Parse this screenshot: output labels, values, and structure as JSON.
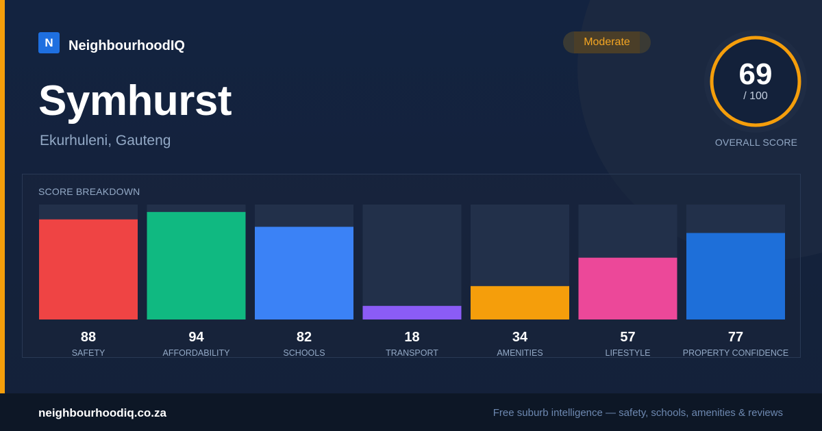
{
  "brand": {
    "logo_letter": "N",
    "name": "NeighbourhoodIQ"
  },
  "header": {
    "title": "Symhurst",
    "subtitle": "Ekurhuleni, Gauteng"
  },
  "badge": {
    "label": "Moderate",
    "color": "#f5a623"
  },
  "overall": {
    "score": 69,
    "max_label": "/ 100",
    "caption": "OVERALL SCORE",
    "max": 100,
    "ring_color": "#f59e0b"
  },
  "breakdown": {
    "title": "SCORE BREAKDOWN"
  },
  "chart_data": {
    "type": "bar",
    "categories": [
      "SAFETY",
      "AFFORDABILITY",
      "SCHOOLS",
      "TRANSPORT",
      "AMENITIES",
      "LIFESTYLE",
      "PROPERTY CONFIDENCE"
    ],
    "values": [
      88,
      94,
      82,
      18,
      34,
      57,
      77
    ],
    "colors": [
      "#ef4444",
      "#10b981",
      "#3b82f6",
      "#8b5cf6",
      "#f59e0b",
      "#ec4899",
      "#1e6fd9"
    ],
    "ylim": [
      0,
      100
    ],
    "data_labels": true,
    "grid": false,
    "legend": "none"
  },
  "footer": {
    "domain": "neighbourhoodiq.co.za",
    "tagline": "Free suburb intelligence — safety, schools, amenities & reviews"
  }
}
